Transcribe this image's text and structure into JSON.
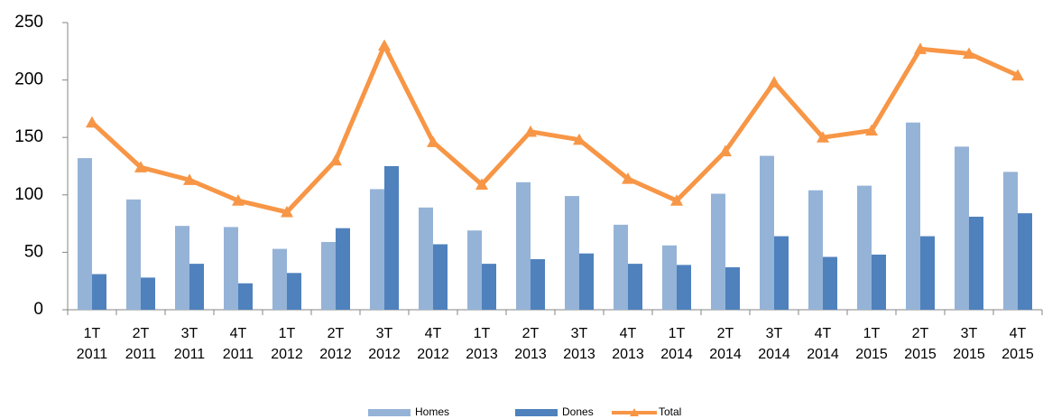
{
  "chart_data": {
    "type": "bar_line",
    "categories": [
      [
        "1T",
        "2011"
      ],
      [
        "2T",
        "2011"
      ],
      [
        "3T",
        "2011"
      ],
      [
        "4T",
        "2011"
      ],
      [
        "1T",
        "2012"
      ],
      [
        "2T",
        "2012"
      ],
      [
        "3T",
        "2012"
      ],
      [
        "4T",
        "2012"
      ],
      [
        "1T",
        "2013"
      ],
      [
        "2T",
        "2013"
      ],
      [
        "3T",
        "2013"
      ],
      [
        "4T",
        "2013"
      ],
      [
        "1T",
        "2014"
      ],
      [
        "2T",
        "2014"
      ],
      [
        "3T",
        "2014"
      ],
      [
        "4T",
        "2014"
      ],
      [
        "1T",
        "2015"
      ],
      [
        "2T",
        "2015"
      ],
      [
        "3T",
        "2015"
      ],
      [
        "4T",
        "2015"
      ]
    ],
    "series": [
      {
        "name": "Homes",
        "type": "bar",
        "color": "#95b3d7",
        "values": [
          132,
          96,
          73,
          72,
          53,
          59,
          105,
          89,
          69,
          111,
          99,
          74,
          56,
          101,
          134,
          104,
          108,
          163,
          142,
          120
        ]
      },
      {
        "name": "Dones",
        "type": "bar",
        "color": "#4f81bd",
        "values": [
          31,
          28,
          40,
          23,
          32,
          71,
          125,
          57,
          40,
          44,
          49,
          40,
          39,
          37,
          64,
          46,
          48,
          64,
          81,
          84
        ]
      },
      {
        "name": "Total",
        "type": "line",
        "color": "#f79646",
        "values": [
          163,
          124,
          113,
          95,
          85,
          130,
          230,
          146,
          109,
          155,
          148,
          114,
          95,
          138,
          198,
          150,
          156,
          227,
          223,
          204
        ]
      }
    ],
    "ylim": [
      0,
      250
    ],
    "yticks": [
      0,
      50,
      100,
      150,
      200,
      250
    ],
    "legend": "bottom"
  }
}
